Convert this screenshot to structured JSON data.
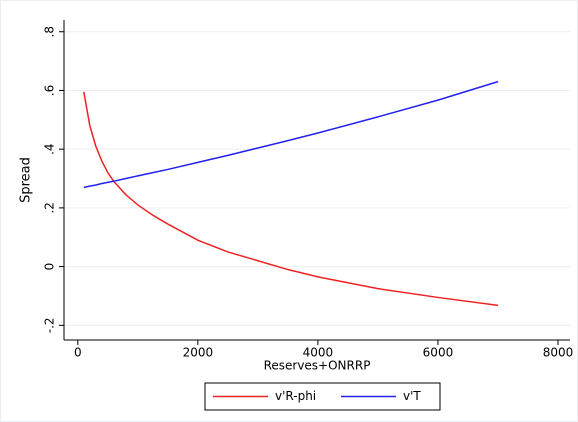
{
  "chart_data": {
    "type": "line",
    "x_label": "Reserves+ONRRP",
    "y_label": "Spread",
    "x": [
      100,
      200,
      300,
      400,
      500,
      600,
      800,
      1000,
      1250,
      1500,
      2000,
      2500,
      3000,
      3500,
      4000,
      5000,
      6000,
      7000
    ],
    "series": [
      {
        "name": "v'R-phi",
        "color": "#ee2222",
        "values": [
          0.595,
          0.48,
          0.41,
          0.36,
          0.32,
          0.29,
          0.245,
          0.21,
          0.175,
          0.145,
          0.09,
          0.05,
          0.02,
          -0.01,
          -0.035,
          -0.075,
          -0.105,
          -0.132
        ]
      },
      {
        "name": "v'T",
        "color": "#2222ee",
        "values": [
          0.27,
          0.274,
          0.278,
          0.283,
          0.287,
          0.291,
          0.3,
          0.309,
          0.32,
          0.331,
          0.355,
          0.379,
          0.404,
          0.429,
          0.455,
          0.51,
          0.567,
          0.63
        ]
      }
    ],
    "xlim": [
      -230,
      8200
    ],
    "ylim": [
      -0.25,
      0.84
    ],
    "xticks": [
      0,
      2000,
      4000,
      6000,
      8000
    ],
    "yticks": [
      {
        "value": -0.2,
        "label": "-.2"
      },
      0,
      {
        "value": 0.2,
        "label": ".2"
      },
      {
        "value": 0.4,
        "label": ".4"
      },
      {
        "value": 0.6,
        "label": ".6"
      },
      {
        "value": 0.8,
        "label": ".8"
      }
    ],
    "grid": true,
    "legend": "bottom"
  }
}
